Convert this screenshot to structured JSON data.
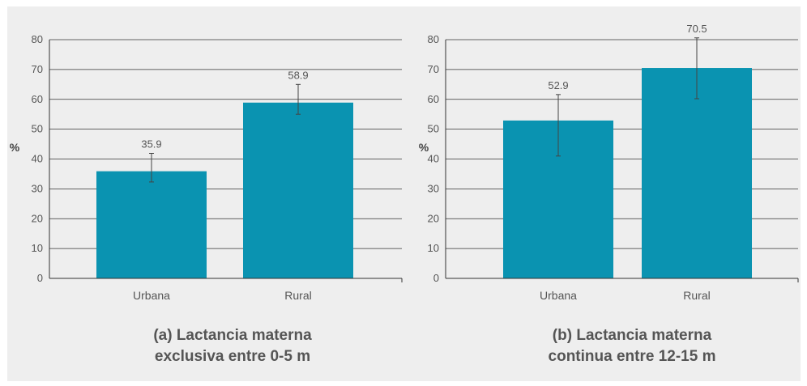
{
  "chart_data": [
    {
      "type": "bar",
      "title_lines": [
        "(a) Lactancia materna",
        "exclusiva entre 0-5 m"
      ],
      "ylabel": "%",
      "ylim": [
        0,
        80
      ],
      "yticks": [
        "0",
        "10",
        "20",
        "30",
        "40",
        "50",
        "60",
        "70",
        "80"
      ],
      "categories": [
        "Urbana",
        "Rural"
      ],
      "values": [
        35.9,
        58.9
      ],
      "value_labels": [
        "35.9",
        "58.9"
      ],
      "error_low": [
        32.3,
        55.0
      ],
      "error_high": [
        41.9,
        65.0
      ],
      "color": "#0a93b1"
    },
    {
      "type": "bar",
      "title_lines": [
        "(b) Lactancia materna",
        "continua entre 12-15 m"
      ],
      "ylabel": "%",
      "ylim": [
        0,
        80
      ],
      "yticks": [
        "0",
        "10",
        "20",
        "30",
        "40",
        "50",
        "60",
        "70",
        "80"
      ],
      "categories": [
        "Urbana",
        "Rural"
      ],
      "values": [
        52.9,
        70.5
      ],
      "value_labels": [
        "52.9",
        "70.5"
      ],
      "error_low": [
        41.0,
        60.2
      ],
      "error_high": [
        61.6,
        80.6
      ],
      "color": "#0a93b1"
    }
  ]
}
